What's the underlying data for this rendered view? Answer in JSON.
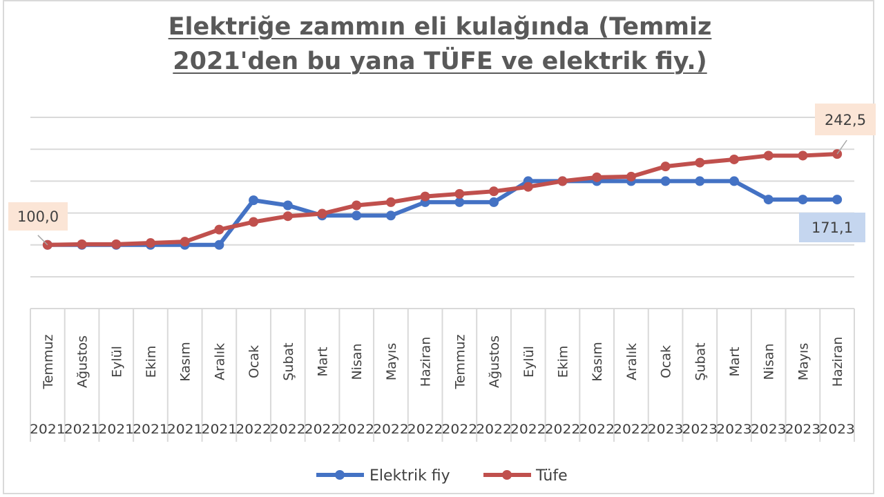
{
  "chart_data": {
    "type": "line",
    "title_line1": "Elektriğe zammın eli kulağında (Temmiz",
    "title_line2": "2021'den bu yana TÜFE ve elektrik fiy.)",
    "categories": [
      {
        "month": "Temmuz",
        "year": "2021"
      },
      {
        "month": "Ağustos",
        "year": "2021"
      },
      {
        "month": "Eylül",
        "year": "2021"
      },
      {
        "month": "Ekim",
        "year": "2021"
      },
      {
        "month": "Kasım",
        "year": "2021"
      },
      {
        "month": "Aralık",
        "year": "2021"
      },
      {
        "month": "Ocak",
        "year": "2022"
      },
      {
        "month": "Şubat",
        "year": "2022"
      },
      {
        "month": "Mart",
        "year": "2022"
      },
      {
        "month": "Nisan",
        "year": "2022"
      },
      {
        "month": "Mayıs",
        "year": "2022"
      },
      {
        "month": "Haziran",
        "year": "2022"
      },
      {
        "month": "Temmuz",
        "year": "2022"
      },
      {
        "month": "Ağustos",
        "year": "2022"
      },
      {
        "month": "Eylül",
        "year": "2022"
      },
      {
        "month": "Ekim",
        "year": "2022"
      },
      {
        "month": "Kasım",
        "year": "2022"
      },
      {
        "month": "Aralık",
        "year": "2022"
      },
      {
        "month": "Ocak",
        "year": "2023"
      },
      {
        "month": "Şubat",
        "year": "2023"
      },
      {
        "month": "Mart",
        "year": "2023"
      },
      {
        "month": "Nisan",
        "year": "2023"
      },
      {
        "month": "Mayıs",
        "year": "2023"
      },
      {
        "month": "Haziran",
        "year": "2023"
      }
    ],
    "ylim": [
      50,
      300
    ],
    "gridlines": [
      50,
      100,
      150,
      200,
      250,
      300
    ],
    "series": [
      {
        "name": "Elektrik fiy",
        "color": "#4472c4",
        "values": [
          100,
          100,
          100,
          100,
          100,
          100,
          170,
          162,
          146,
          146,
          146,
          167,
          167,
          167,
          200,
          200,
          200,
          200,
          200,
          200,
          200,
          171.1,
          171.1,
          171.1
        ],
        "end_label": "171,1",
        "end_label_bg": "#c5d6ef"
      },
      {
        "name": "Tüfe",
        "color": "#c0504d",
        "values": [
          100,
          101,
          101,
          103,
          105,
          124,
          136,
          145,
          149,
          162,
          167,
          176,
          180,
          184,
          191,
          200,
          206,
          207,
          223,
          229,
          234,
          240,
          240,
          242.5
        ],
        "start_label": "100,0",
        "end_label": "242,5",
        "label_bg": "#fbe5d6"
      }
    ],
    "legend_position": "bottom",
    "grid": true
  }
}
